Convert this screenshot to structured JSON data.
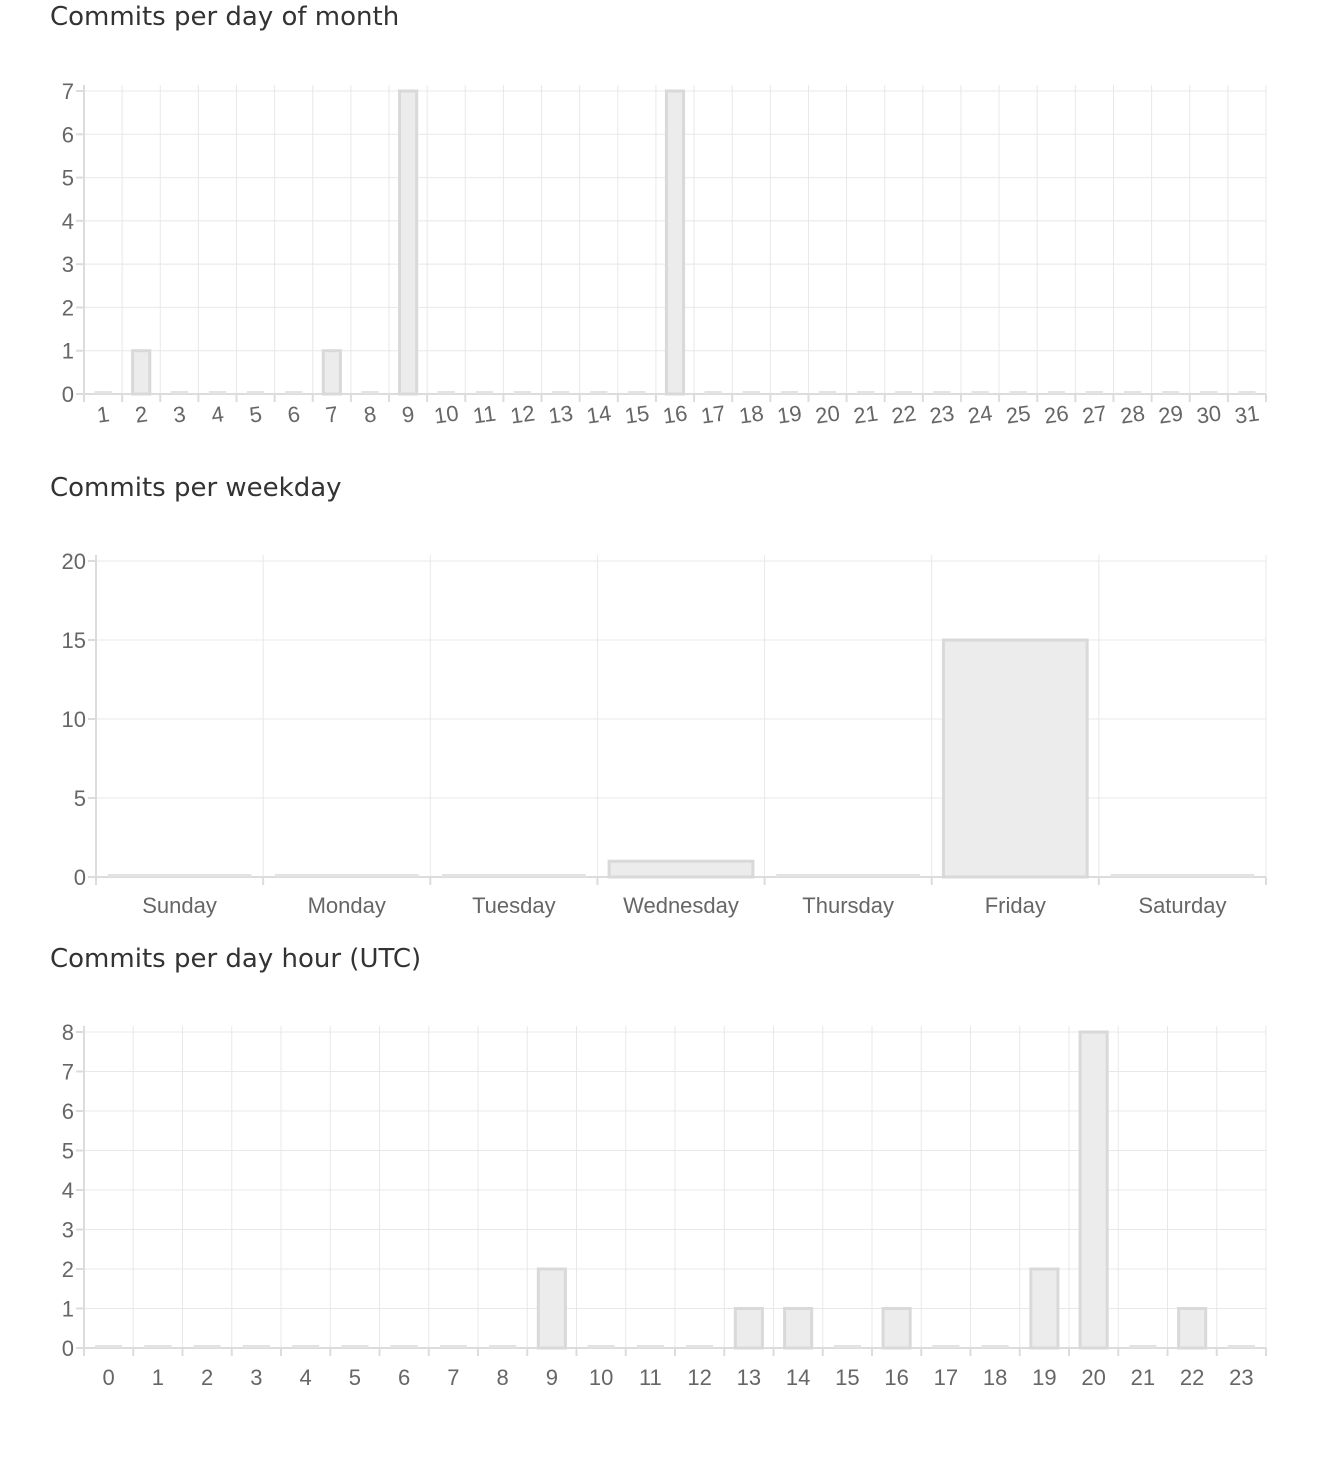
{
  "chart_data": [
    {
      "id": "day-of-month",
      "type": "bar",
      "title": "Commits per day of month",
      "categories": [
        "1",
        "2",
        "3",
        "4",
        "5",
        "6",
        "7",
        "8",
        "9",
        "10",
        "11",
        "12",
        "13",
        "14",
        "15",
        "16",
        "17",
        "18",
        "19",
        "20",
        "21",
        "22",
        "23",
        "24",
        "25",
        "26",
        "27",
        "28",
        "29",
        "30",
        "31"
      ],
      "values": [
        0,
        1,
        0,
        0,
        0,
        0,
        1,
        0,
        7,
        0,
        0,
        0,
        0,
        0,
        0,
        7,
        0,
        0,
        0,
        0,
        0,
        0,
        0,
        0,
        0,
        0,
        0,
        0,
        0,
        0,
        0
      ],
      "yticks": [
        0,
        1,
        2,
        3,
        4,
        5,
        6,
        7
      ],
      "ylim": [
        0,
        7
      ],
      "xlabel": "",
      "ylabel": "",
      "x_labels_rotated": true,
      "grid": true
    },
    {
      "id": "weekday",
      "type": "bar",
      "title": "Commits per weekday",
      "categories": [
        "Sunday",
        "Monday",
        "Tuesday",
        "Wednesday",
        "Thursday",
        "Friday",
        "Saturday"
      ],
      "values": [
        0,
        0,
        0,
        1,
        0,
        15,
        0
      ],
      "yticks": [
        0,
        5,
        10,
        15,
        20
      ],
      "ylim": [
        0,
        20
      ],
      "xlabel": "",
      "ylabel": "",
      "x_labels_rotated": false,
      "grid": true
    },
    {
      "id": "day-hour",
      "type": "bar",
      "title": "Commits per day hour (UTC)",
      "categories": [
        "0",
        "1",
        "2",
        "3",
        "4",
        "5",
        "6",
        "7",
        "8",
        "9",
        "10",
        "11",
        "12",
        "13",
        "14",
        "15",
        "16",
        "17",
        "18",
        "19",
        "20",
        "21",
        "22",
        "23"
      ],
      "values": [
        0,
        0,
        0,
        0,
        0,
        0,
        0,
        0,
        0,
        2,
        0,
        0,
        0,
        1,
        1,
        0,
        1,
        0,
        0,
        2,
        8,
        0,
        1,
        0
      ],
      "yticks": [
        0,
        1,
        2,
        3,
        4,
        5,
        6,
        7,
        8
      ],
      "ylim": [
        0,
        8
      ],
      "xlabel": "",
      "ylabel": "",
      "x_labels_rotated": false,
      "grid": true
    }
  ]
}
